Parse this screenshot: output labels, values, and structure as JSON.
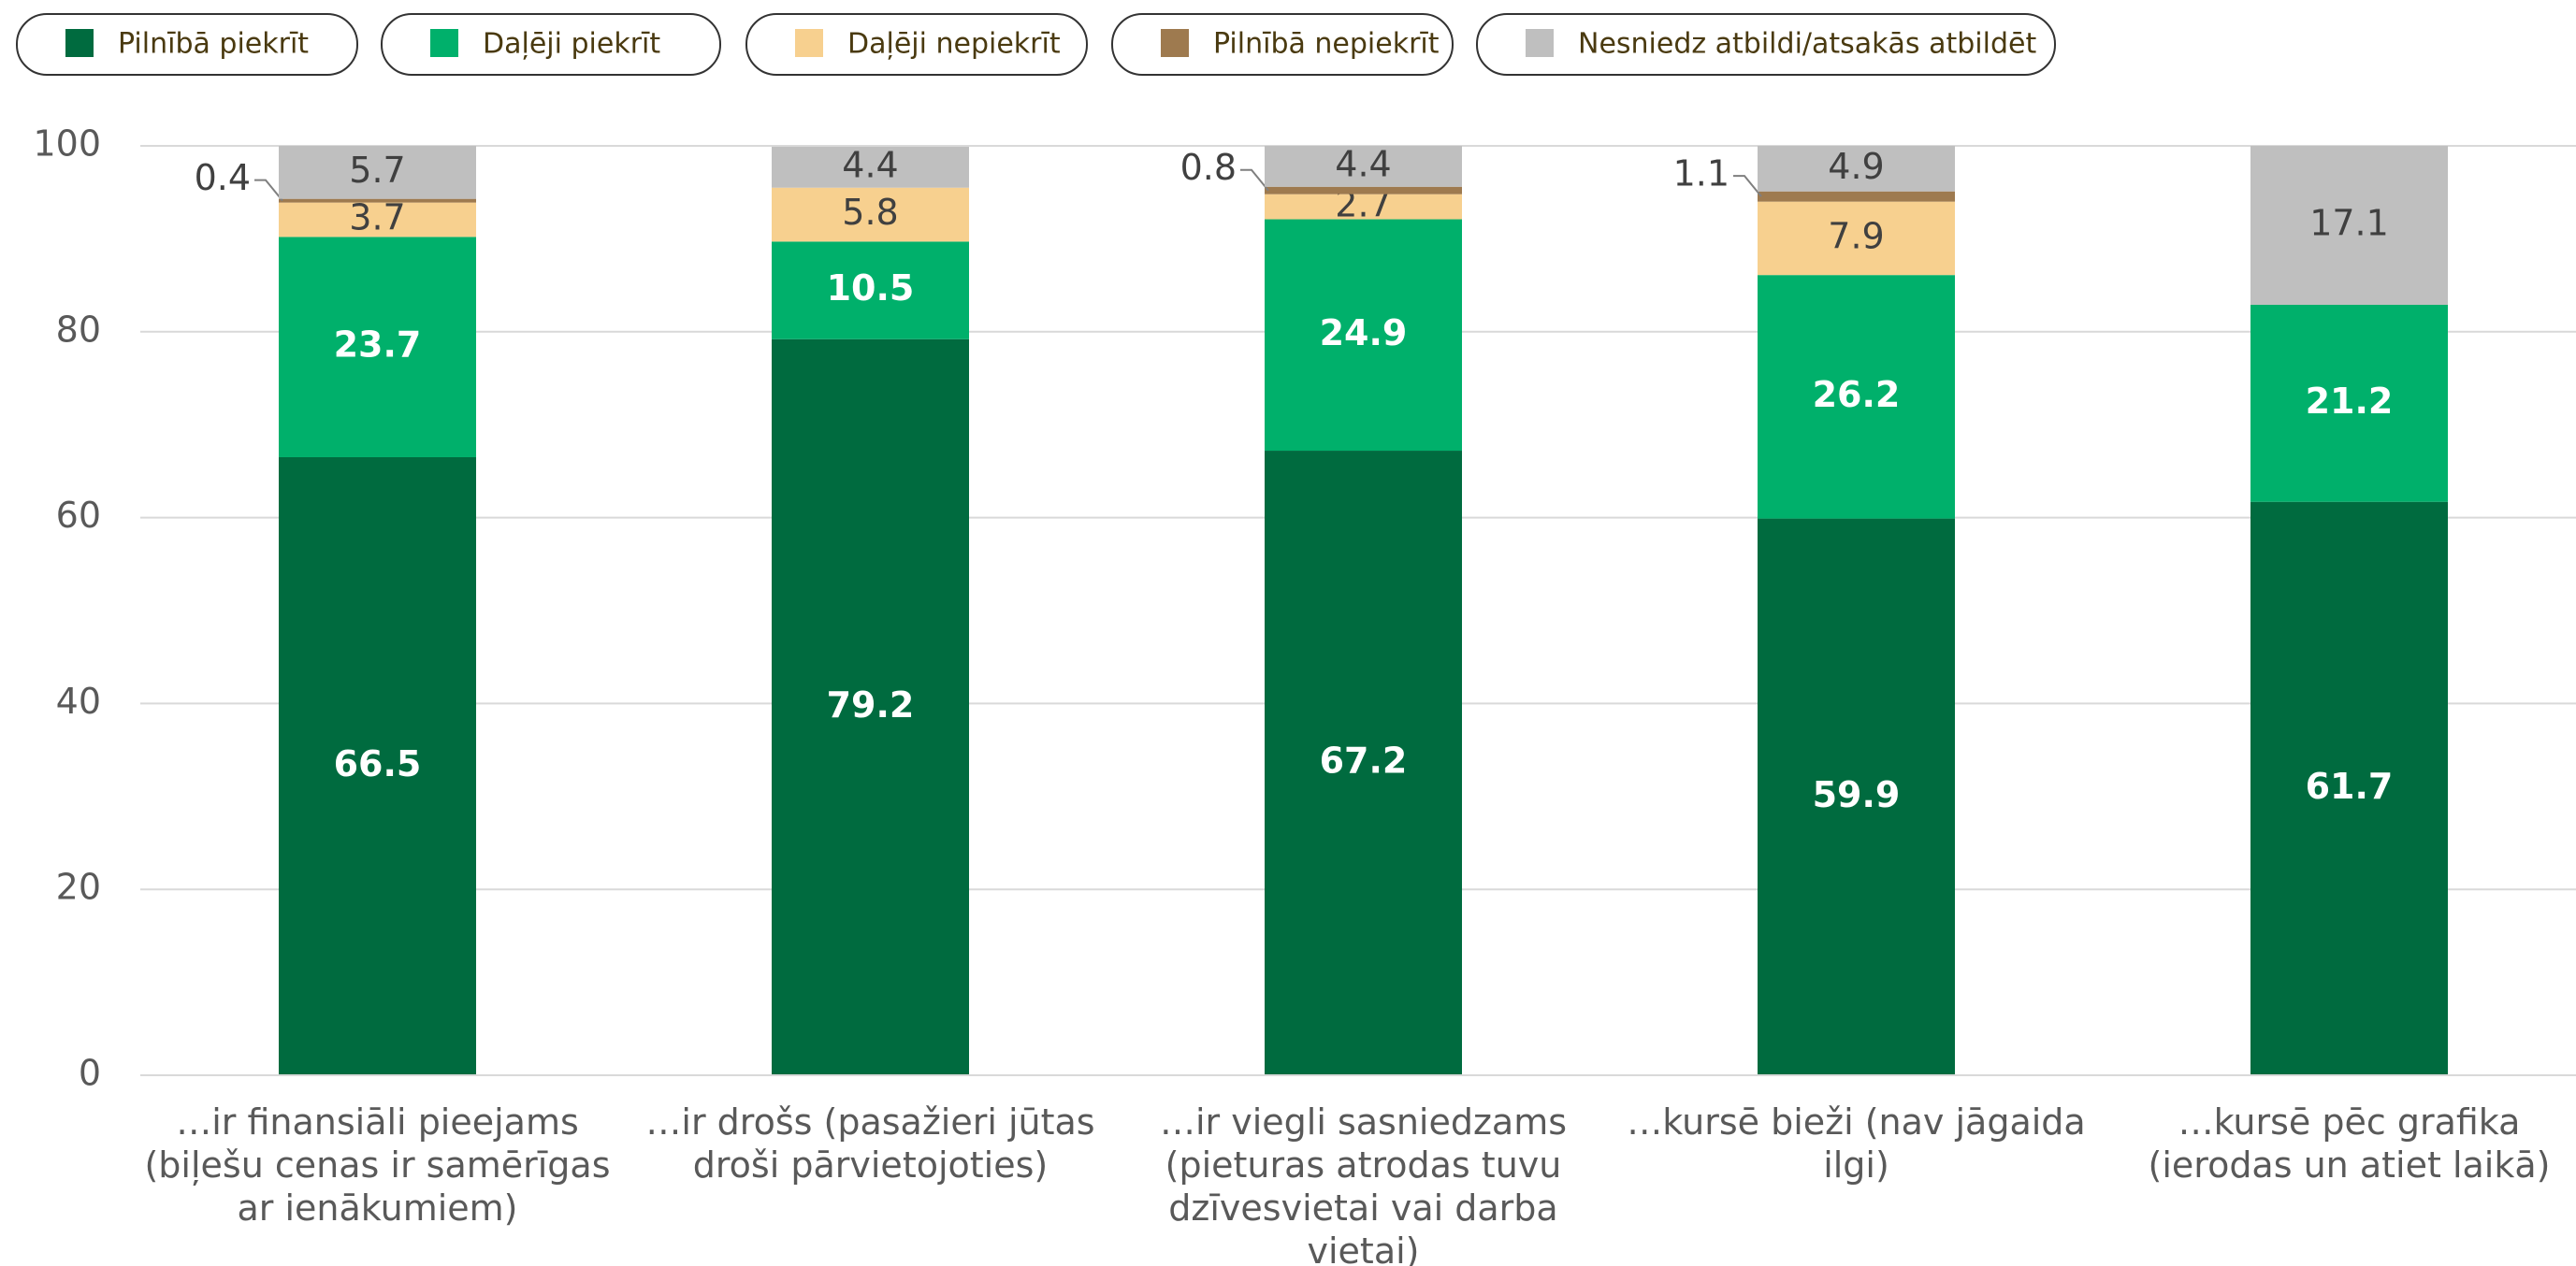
{
  "chart_data": {
    "type": "stacked_bar",
    "categories": [
      "…ir finansiāli pieejams (biļešu cenas ir samērīgas ar ienākumiem)",
      "…ir drošs (pasažieri jūtas droši pārvietojoties)",
      "…ir viegli sasniedzams (pieturas atrodas tuvu dzīvesvietai vai darba vietai)",
      "…kursē bieži (nav jāgaida ilgi)",
      "…kursē pēc grafika (ierodas un atiet laikā)"
    ],
    "series": [
      {
        "name": "Pilnībā piekrīt",
        "color": "#006b3f",
        "values": [
          66.5,
          79.2,
          67.2,
          59.9,
          61.7
        ]
      },
      {
        "name": "Daļēji piekrīt",
        "color": "#00b06b",
        "values": [
          23.7,
          10.5,
          24.9,
          26.2,
          21.2
        ]
      },
      {
        "name": "Daļēji nepiekrīt",
        "color": "#f7d08f",
        "values": [
          3.7,
          5.8,
          2.7,
          7.9,
          null
        ]
      },
      {
        "name": "Pilnībā nepiekrīt",
        "color": "#9e7a4f",
        "values": [
          0.4,
          null,
          0.8,
          1.1,
          null
        ]
      },
      {
        "name": "Nesniedz atbildi/atsakās atbildēt",
        "color": "#bfbfbf",
        "values": [
          5.7,
          4.4,
          4.4,
          4.9,
          17.1
        ]
      }
    ],
    "ylim": [
      0,
      100
    ],
    "yticks": [
      0,
      20,
      40,
      60,
      80,
      100
    ],
    "grid": true
  }
}
